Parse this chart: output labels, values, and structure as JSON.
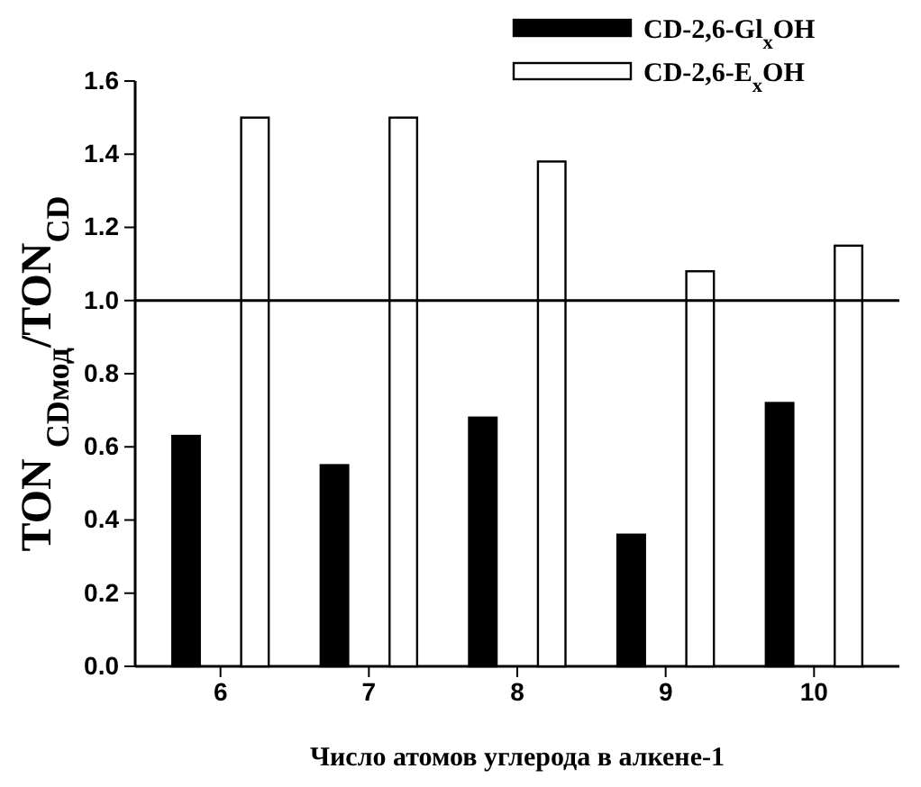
{
  "chart_data": {
    "type": "bar",
    "xlabel": "Число атомов углерода в алкене-1",
    "ylabel": "TON $_{CDмод}$/TON$_{CD}$",
    "categories": [
      "6",
      "7",
      "8",
      "9",
      "10"
    ],
    "series": [
      {
        "name": "CD-2,6-Gl$_{x}$OH",
        "color": "#000000",
        "values": [
          0.63,
          0.55,
          0.68,
          0.36,
          0.72
        ]
      },
      {
        "name": "CD-2,6-E$_{x}$OH",
        "color": "#ffffff",
        "values": [
          1.5,
          1.5,
          1.38,
          1.08,
          1.15
        ]
      }
    ],
    "ylim": [
      0,
      1.6
    ],
    "yticks": [
      {
        "value": 0,
        "label": "0.0"
      },
      0.2,
      0.4,
      0.6,
      0.8,
      {
        "value": 1,
        "label": "1.0"
      },
      1.2,
      1.4,
      1.6
    ],
    "ref_lines": [
      {
        "axis": "y",
        "value": 1,
        "color": "#000000"
      }
    ],
    "legend": "top right",
    "grid": false
  }
}
